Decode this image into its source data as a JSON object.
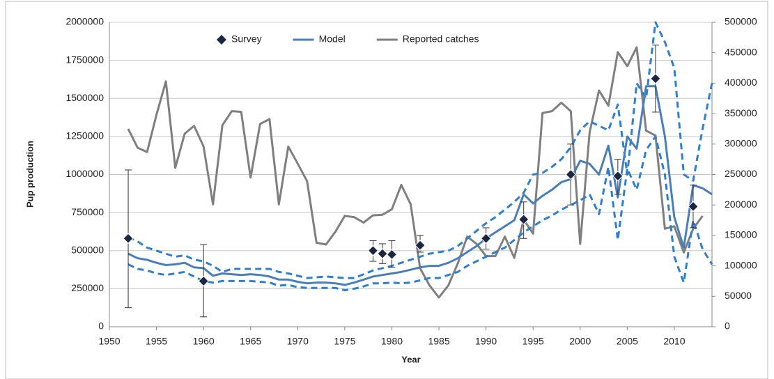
{
  "chart_data": {
    "type": "line",
    "x_label": "Year",
    "y_label": "Pup production",
    "xlim": [
      1950,
      2014
    ],
    "xticks": [
      1950,
      1955,
      1960,
      1965,
      1970,
      1975,
      1980,
      1985,
      1990,
      1995,
      2000,
      2005,
      2010
    ],
    "ylim": [
      0,
      2000000
    ],
    "yticks": [
      0,
      250000,
      500000,
      750000,
      1000000,
      1250000,
      1500000,
      1750000,
      2000000
    ],
    "y2lim": [
      0,
      500000
    ],
    "y2ticks": [
      0,
      50000,
      100000,
      150000,
      200000,
      250000,
      300000,
      350000,
      400000,
      450000,
      500000
    ],
    "grid": true,
    "legend": "top",
    "x": [
      1952,
      1953,
      1954,
      1955,
      1956,
      1957,
      1958,
      1959,
      1960,
      1961,
      1962,
      1963,
      1964,
      1965,
      1966,
      1967,
      1968,
      1969,
      1970,
      1971,
      1972,
      1973,
      1974,
      1975,
      1976,
      1977,
      1978,
      1979,
      1980,
      1981,
      1982,
      1983,
      1984,
      1985,
      1986,
      1987,
      1988,
      1989,
      1990,
      1991,
      1992,
      1993,
      1994,
      1995,
      1996,
      1997,
      1998,
      1999,
      2000,
      2001,
      2002,
      2003,
      2004,
      2005,
      2006,
      2007,
      2008,
      2009,
      2010,
      2011,
      2012,
      2013,
      2014
    ],
    "series": [
      {
        "name": "Survey",
        "color": "#1b2640",
        "style": "points",
        "x": [
          1952,
          1960,
          1978,
          1979,
          1980,
          1983,
          1990,
          1994,
          1999,
          2004,
          2008,
          2012
        ],
        "values": [
          580000,
          300000,
          500000,
          480000,
          475000,
          535000,
          580000,
          705000,
          1000000,
          990000,
          1630000,
          790000
        ],
        "lower": [
          125000,
          65000,
          430000,
          415000,
          390000,
          490000,
          510000,
          580000,
          800000,
          870000,
          1410000,
          650000
        ],
        "upper": [
          1030000,
          540000,
          565000,
          545000,
          565000,
          600000,
          650000,
          820000,
          1200000,
          1100000,
          1850000,
          930000
        ]
      },
      {
        "name": "Model",
        "color": "#4a7ebb",
        "style": "solid",
        "values": [
          480000,
          450000,
          440000,
          420000,
          405000,
          410000,
          420000,
          390000,
          385000,
          335000,
          350000,
          345000,
          340000,
          345000,
          340000,
          330000,
          310000,
          310000,
          295000,
          285000,
          290000,
          290000,
          285000,
          275000,
          290000,
          310000,
          330000,
          340000,
          350000,
          360000,
          375000,
          390000,
          400000,
          400000,
          420000,
          450000,
          490000,
          530000,
          580000,
          620000,
          660000,
          700000,
          870000,
          810000,
          860000,
          900000,
          950000,
          970000,
          1090000,
          1070000,
          1000000,
          1190000,
          850000,
          1250000,
          1170000,
          1580000,
          1580000,
          1250000,
          720000,
          520000,
          930000,
          910000,
          870000
        ]
      },
      {
        "name": "Reported catches",
        "color": "#7f7f7f",
        "style": "solid",
        "axis": "y2",
        "values": [
          325000,
          294000,
          287000,
          348000,
          403000,
          261000,
          317000,
          330000,
          296000,
          201000,
          331000,
          354000,
          353000,
          245000,
          333000,
          341000,
          201000,
          296000,
          268000,
          239000,
          138000,
          135000,
          156000,
          182000,
          180000,
          171000,
          183000,
          184000,
          193000,
          233000,
          201000,
          96000,
          68000,
          48000,
          68000,
          104000,
          148000,
          136000,
          116000,
          116000,
          148000,
          113000,
          176000,
          153000,
          351000,
          354000,
          368000,
          354000,
          136000,
          319000,
          388000,
          363000,
          451000,
          428000,
          459000,
          322000,
          314000,
          161000,
          165000,
          122000,
          161000,
          182000,
          null
        ]
      },
      {
        "color": "#2e7fd0",
        "style": "dashed",
        "values": [
          590000,
          560000,
          520000,
          500000,
          480000,
          460000,
          470000,
          440000,
          430000,
          400000,
          360000,
          380000,
          380000,
          380000,
          380000,
          380000,
          360000,
          350000,
          335000,
          320000,
          325000,
          330000,
          325000,
          320000,
          320000,
          345000,
          370000,
          385000,
          400000,
          420000,
          440000,
          460000,
          480000,
          490000,
          500000,
          530000,
          580000,
          630000,
          680000,
          720000,
          770000,
          820000,
          880000,
          1000000,
          1010000,
          1050000,
          1100000,
          1180000,
          1290000,
          1350000,
          1320000,
          1290000,
          1460000,
          1000000,
          1600000,
          1500000,
          2000000,
          1870000,
          1700000,
          1000000,
          960000,
          1300000,
          1600000
        ]
      },
      {
        "color": "#2e7fd0",
        "style": "dashed",
        "values": [
          410000,
          380000,
          370000,
          350000,
          340000,
          350000,
          360000,
          330000,
          300000,
          290000,
          300000,
          300000,
          300000,
          300000,
          295000,
          290000,
          270000,
          275000,
          260000,
          255000,
          255000,
          255000,
          255000,
          240000,
          250000,
          265000,
          285000,
          285000,
          290000,
          285000,
          290000,
          305000,
          320000,
          320000,
          340000,
          360000,
          400000,
          430000,
          460000,
          490000,
          520000,
          570000,
          620000,
          660000,
          700000,
          730000,
          770000,
          800000,
          830000,
          870000,
          740000,
          1050000,
          570000,
          1040000,
          900000,
          1160000,
          1250000,
          1000000,
          460000,
          290000,
          700000,
          510000,
          410000
        ]
      }
    ]
  }
}
